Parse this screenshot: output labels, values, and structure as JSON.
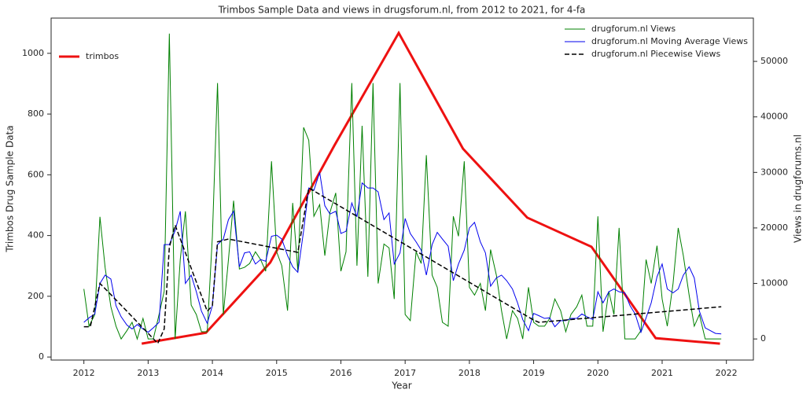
{
  "chart_data": {
    "type": "line",
    "title": "Trimbos Sample Data and views in drugsforum.nl, from 2012 to 2021, for 4-fa",
    "x_label": "Year",
    "y_label": "Trimbos Drug Sample Data",
    "y2_label": "Views in drugforums.nl",
    "xlim": [
      2011.49,
      2022.42
    ],
    "xticks": [
      2012,
      2013,
      2014,
      2015,
      2016,
      2017,
      2018,
      2019,
      2020,
      2021,
      2022
    ],
    "ylim": [
      -10,
      1116
    ],
    "yticks": [
      0,
      200,
      400,
      600,
      800,
      1000
    ],
    "y2lim": [
      -3800,
      57800
    ],
    "y2ticks": [
      0,
      10000,
      20000,
      30000,
      40000,
      50000
    ],
    "legend_y": "upper left",
    "legend_y2": "upper right",
    "x": [
      2012,
      2012.08,
      2012.17,
      2012.25,
      2012.33,
      2012.42,
      2012.5,
      2012.58,
      2012.67,
      2012.75,
      2012.83,
      2012.92,
      2013,
      2013.08,
      2013.17,
      2013.25,
      2013.33,
      2013.42,
      2013.5,
      2013.58,
      2013.67,
      2013.75,
      2013.83,
      2013.92,
      2014,
      2014.08,
      2014.17,
      2014.25,
      2014.33,
      2014.42,
      2014.5,
      2014.58,
      2014.67,
      2014.75,
      2014.83,
      2014.92,
      2015,
      2015.08,
      2015.17,
      2015.25,
      2015.33,
      2015.42,
      2015.5,
      2015.58,
      2015.67,
      2015.75,
      2015.83,
      2015.92,
      2016,
      2016.08,
      2016.17,
      2016.25,
      2016.33,
      2016.42,
      2016.5,
      2016.58,
      2016.67,
      2016.75,
      2016.83,
      2016.92,
      2017,
      2017.08,
      2017.17,
      2017.25,
      2017.33,
      2017.42,
      2017.5,
      2017.58,
      2017.67,
      2017.75,
      2017.83,
      2017.92,
      2018,
      2018.08,
      2018.17,
      2018.25,
      2018.33,
      2018.42,
      2018.5,
      2018.58,
      2018.67,
      2018.75,
      2018.83,
      2018.92,
      2019,
      2019.08,
      2019.17,
      2019.25,
      2019.33,
      2019.42,
      2019.5,
      2019.58,
      2019.67,
      2019.75,
      2019.83,
      2019.92,
      2020,
      2020.08,
      2020.17,
      2020.25,
      2020.33,
      2020.42,
      2020.5,
      2020.58,
      2020.67,
      2020.75,
      2020.83,
      2020.92,
      2021,
      2021.08,
      2021.17,
      2021.25,
      2021.33,
      2021.42,
      2021.5,
      2021.58,
      2021.67,
      2021.75,
      2021.83,
      2021.92
    ],
    "series": [
      {
        "name": "trimbos",
        "color": "#ee1111",
        "linewidth": 3,
        "linestyle": "solid",
        "axis": "y",
        "x": [
          2012.9,
          2013.9,
          2014.9,
          2015.9,
          2016.9,
          2017.9,
          2018.9,
          2019.9,
          2020.9,
          2021.9
        ],
        "values": [
          44,
          80,
          311,
          697,
          1067,
          686,
          459,
          363,
          62,
          44
        ]
      },
      {
        "name": "drugforum.nl Views",
        "color": "#008000",
        "linewidth": 1,
        "linestyle": "solid",
        "axis": "y2",
        "values": [
          9000,
          2300,
          4400,
          22000,
          12900,
          5800,
          2300,
          0,
          1500,
          3000,
          0,
          3700,
          0,
          0,
          4400,
          8600,
          55000,
          0,
          14300,
          23000,
          6100,
          4400,
          1300,
          1300,
          18500,
          46100,
          4400,
          14300,
          24900,
          12600,
          12900,
          13600,
          15700,
          14300,
          12200,
          32000,
          15700,
          13200,
          5100,
          24500,
          12200,
          38100,
          35800,
          22100,
          24200,
          15000,
          22800,
          26300,
          12200,
          15700,
          46100,
          13200,
          38400,
          11200,
          46100,
          10000,
          17100,
          16400,
          7200,
          46100,
          4400,
          3300,
          15700,
          13600,
          33100,
          11500,
          9300,
          3000,
          2300,
          22100,
          18500,
          32000,
          9300,
          7900,
          10000,
          5100,
          16100,
          11500,
          5100,
          0,
          5100,
          3700,
          0,
          9300,
          3000,
          2300,
          2300,
          3700,
          7200,
          5100,
          1300,
          4400,
          5800,
          7900,
          2300,
          2300,
          22100,
          1300,
          8600,
          4400,
          20000,
          0,
          0,
          0,
          1500,
          14300,
          10000,
          16800,
          7200,
          2300,
          10000,
          20000,
          15000,
          7900,
          2300,
          4400,
          0,
          0,
          0,
          0
        ]
      },
      {
        "name": "drugforum.nl Moving Average Views",
        "color": "#0000ee",
        "linewidth": 1,
        "linestyle": "solid",
        "axis": "y2",
        "values": [
          3000,
          3800,
          4500,
          10000,
          11500,
          10800,
          6000,
          4000,
          2500,
          1800,
          2600,
          1800,
          1200,
          2000,
          3000,
          17000,
          17000,
          19500,
          23000,
          10000,
          11500,
          8500,
          5000,
          2800,
          6000,
          17000,
          18000,
          21500,
          23000,
          13000,
          15500,
          15700,
          13500,
          14300,
          14000,
          18500,
          18700,
          18000,
          15000,
          13000,
          12000,
          19500,
          27200,
          26800,
          30000,
          24000,
          22500,
          23000,
          19000,
          19400,
          24500,
          22000,
          28100,
          27200,
          27200,
          26500,
          21500,
          22700,
          13500,
          15500,
          21700,
          19000,
          17500,
          16000,
          11500,
          17000,
          19200,
          18000,
          16700,
          10500,
          13500,
          16000,
          20000,
          21000,
          17500,
          15500,
          9500,
          11000,
          11500,
          10500,
          9000,
          6500,
          3500,
          1500,
          4600,
          4200,
          3700,
          3800,
          2200,
          3300,
          3300,
          3700,
          3700,
          4500,
          4000,
          3500,
          8500,
          6500,
          8500,
          9000,
          8500,
          8300,
          6000,
          4500,
          1200,
          3800,
          6500,
          11200,
          13500,
          9000,
          8300,
          9000,
          11500,
          13000,
          11000,
          5000,
          2000,
          1500,
          1000,
          900
        ]
      },
      {
        "name": "drugforum.nl Piecewise Views",
        "color": "#000000",
        "linewidth": 1.5,
        "linestyle": "dashed",
        "axis": "y2",
        "x": [
          2012,
          2012.1,
          2012.25,
          2012.42,
          2013.15,
          2013.25,
          2013.33,
          2013.42,
          2013.92,
          2014,
          2014.08,
          2014.25,
          2015.33,
          2015.5,
          2019,
          2019.08,
          2021.92
        ],
        "values": [
          2200,
          2200,
          10000,
          8000,
          -800,
          1800,
          16500,
          20500,
          5000,
          6000,
          17500,
          18000,
          15600,
          27200,
          3400,
          3000,
          5800
        ]
      }
    ]
  }
}
